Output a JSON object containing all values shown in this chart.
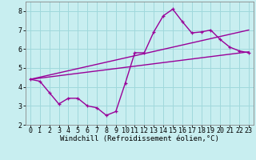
{
  "title": "",
  "xlabel": "Windchill (Refroidissement éolien,°C)",
  "background_color": "#c8eef0",
  "grid_color": "#a0d8dc",
  "line_color": "#990099",
  "xlim": [
    -0.5,
    23.5
  ],
  "ylim": [
    2,
    8.5
  ],
  "xticks": [
    0,
    1,
    2,
    3,
    4,
    5,
    6,
    7,
    8,
    9,
    10,
    11,
    12,
    13,
    14,
    15,
    16,
    17,
    18,
    19,
    20,
    21,
    22,
    23
  ],
  "yticks": [
    2,
    3,
    4,
    5,
    6,
    7,
    8
  ],
  "series1_x": [
    0,
    1,
    2,
    3,
    4,
    5,
    6,
    7,
    8,
    9,
    10,
    11,
    12,
    13,
    14,
    15,
    16,
    17,
    18,
    19,
    20,
    21,
    22,
    23
  ],
  "series1_y": [
    4.4,
    4.3,
    3.7,
    3.1,
    3.4,
    3.4,
    3.0,
    2.9,
    2.5,
    2.7,
    4.2,
    5.8,
    5.8,
    6.9,
    7.75,
    8.1,
    7.45,
    6.85,
    6.9,
    7.0,
    6.5,
    6.1,
    5.9,
    5.8
  ],
  "series2_x": [
    0,
    23
  ],
  "series2_y": [
    4.4,
    5.85
  ],
  "series3_x": [
    0,
    23
  ],
  "series3_y": [
    4.4,
    7.0
  ],
  "marker_size": 3.5,
  "line_width": 1.0,
  "xlabel_fontsize": 6.5,
  "tick_fontsize": 6.0
}
